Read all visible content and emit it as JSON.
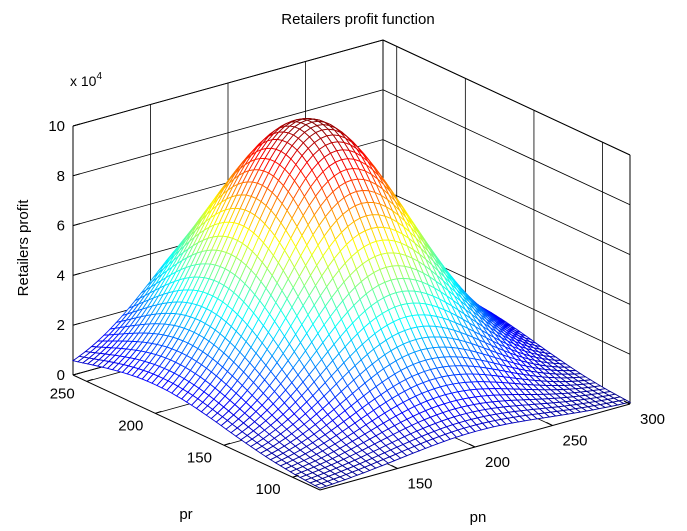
{
  "chart_data": {
    "type": "surface",
    "title": "Retailers profit function",
    "xlabel": "pn",
    "ylabel": "pr",
    "zlabel": "Retailers profit",
    "z_exponent_label": "x 10",
    "z_exponent_power": "4",
    "xlim": [
      100,
      300
    ],
    "ylim": [
      80,
      260
    ],
    "zlim": [
      0,
      100000
    ],
    "x_ticks": [
      "150",
      "200",
      "250",
      "300"
    ],
    "y_ticks": [
      "100",
      "150",
      "200",
      "250"
    ],
    "z_ticks": [
      "0",
      "2",
      "4",
      "6",
      "8",
      "10"
    ],
    "grid": true,
    "colormap": "jet",
    "surface_peak": {
      "pn": 200,
      "pr": 200,
      "profit": 100000
    },
    "mesh_resolution": 50
  }
}
